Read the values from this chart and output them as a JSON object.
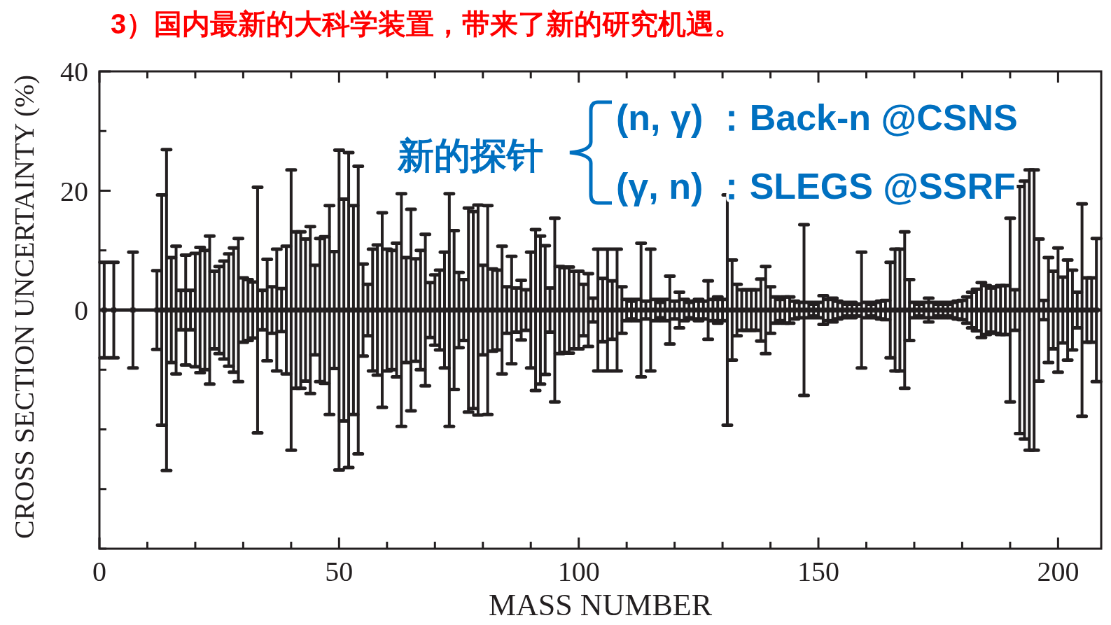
{
  "chart_data": {
    "type": "scatter",
    "title": "3）国内最新的大科学装置，带来了新的研究机遇。",
    "xlabel": "MASS NUMBER",
    "ylabel": "CROSS SECTION UNCERTAINTY (%)",
    "annotations": [
      "新的探针",
      "(n, γ) ：Back-n @CSNS",
      "(γ, n) ：SLEGS @SSRF"
    ],
    "marker": "square",
    "xlim": [
      0,
      209
    ],
    "ylim": [
      -40,
      40
    ],
    "xticks": [
      0,
      {
        "value": 10,
        "label": null
      },
      {
        "value": 20,
        "label": null
      },
      {
        "value": 30,
        "label": null
      },
      {
        "value": 40,
        "label": null
      },
      50,
      {
        "value": 60,
        "label": null
      },
      {
        "value": 70,
        "label": null
      },
      {
        "value": 80,
        "label": null
      },
      {
        "value": 90,
        "label": null
      },
      100,
      {
        "value": 110,
        "label": null
      },
      {
        "value": 120,
        "label": null
      },
      {
        "value": 130,
        "label": null
      },
      {
        "value": 140,
        "label": null
      },
      150,
      {
        "value": 160,
        "label": null
      },
      {
        "value": 170,
        "label": null
      },
      {
        "value": 180,
        "label": null
      },
      {
        "value": 190,
        "label": null
      },
      200
    ],
    "yticks": [
      {
        "value": -40,
        "label": null
      },
      {
        "value": -30,
        "label": null
      },
      {
        "value": -20,
        "label": null
      },
      {
        "value": -10,
        "label": null
      },
      0,
      {
        "value": 10,
        "label": null
      },
      20,
      {
        "value": 30,
        "label": null
      },
      40
    ],
    "ref_lines": [
      {
        "axis": "y",
        "value": 0,
        "label": null
      }
    ],
    "x": [
      1,
      3,
      7,
      12,
      13,
      14,
      15,
      16,
      17,
      18,
      19,
      20,
      21,
      22,
      23,
      24,
      25,
      26,
      27,
      28,
      29,
      30,
      31,
      32,
      33,
      34,
      35,
      36,
      37,
      38,
      39,
      40,
      41,
      42,
      43,
      44,
      45,
      46,
      47,
      48,
      49,
      50,
      51,
      52,
      53,
      54,
      55,
      56,
      57,
      58,
      59,
      60,
      61,
      62,
      63,
      64,
      65,
      66,
      67,
      68,
      69,
      70,
      71,
      72,
      73,
      74,
      75,
      76,
      77,
      78,
      79,
      80,
      81,
      82,
      83,
      84,
      85,
      86,
      87,
      88,
      89,
      90,
      91,
      92,
      93,
      94,
      95,
      96,
      97,
      98,
      99,
      100,
      101,
      102,
      103,
      104,
      105,
      106,
      107,
      108,
      109,
      110,
      111,
      112,
      113,
      114,
      115,
      116,
      117,
      118,
      119,
      120,
      121,
      122,
      123,
      124,
      125,
      126,
      127,
      128,
      129,
      130,
      131,
      132,
      133,
      134,
      135,
      136,
      137,
      138,
      139,
      140,
      141,
      142,
      143,
      144,
      145,
      146,
      147,
      148,
      149,
      150,
      151,
      152,
      153,
      154,
      155,
      156,
      157,
      158,
      159,
      160,
      161,
      162,
      163,
      164,
      165,
      166,
      167,
      168,
      169,
      170,
      171,
      172,
      173,
      174,
      175,
      176,
      177,
      178,
      179,
      180,
      181,
      182,
      183,
      184,
      185,
      186,
      187,
      188,
      189,
      190,
      191,
      192,
      193,
      194,
      195,
      196,
      197,
      198,
      199,
      200,
      201,
      202,
      203,
      204,
      205,
      206,
      207,
      208
    ],
    "series": [
      {
        "color": "#231f20",
        "values": [
          0,
          0,
          0,
          0,
          0,
          0,
          0,
          0,
          0,
          0,
          0,
          0,
          0,
          0,
          0,
          0,
          0,
          0,
          0,
          0,
          0,
          0,
          0,
          0,
          0,
          0,
          0,
          0,
          0,
          0,
          0,
          0,
          0,
          0,
          0,
          0,
          0,
          0,
          0,
          0,
          0,
          0,
          0,
          0,
          0,
          0,
          0,
          0,
          0,
          0,
          0,
          0,
          0,
          0,
          0,
          0,
          0,
          0,
          0,
          0,
          0,
          0,
          0,
          0,
          0,
          0,
          0,
          0,
          0,
          0,
          0,
          0,
          0,
          0,
          0,
          0,
          0,
          0,
          0,
          0,
          0,
          0,
          0,
          0,
          0,
          0,
          0,
          0,
          0,
          0,
          0,
          0,
          0,
          0,
          0,
          0,
          0,
          0,
          0,
          0,
          0,
          0,
          0,
          0,
          0,
          0,
          0,
          0,
          0,
          0,
          0,
          0,
          0,
          0,
          0,
          0,
          0,
          0,
          0,
          0,
          0,
          0,
          0,
          0,
          0,
          0,
          0,
          0,
          0,
          0,
          0,
          0,
          0,
          0,
          0,
          0,
          0,
          0,
          0,
          0,
          0,
          0,
          0,
          0,
          0,
          0,
          0,
          0,
          0,
          0,
          0,
          0,
          0,
          0,
          0,
          0,
          0,
          0,
          0,
          0,
          0,
          0,
          0,
          0,
          0,
          0,
          0,
          0,
          0,
          0,
          0,
          0,
          0,
          0,
          0,
          0,
          0,
          0,
          0,
          0,
          0,
          0,
          0,
          0,
          0,
          0,
          0,
          0,
          0,
          0,
          0,
          0,
          0,
          0,
          0,
          0,
          0,
          0,
          0,
          0
        ],
        "errors": [
          8,
          8,
          9.7,
          6.6,
          19.3,
          26.9,
          8.8,
          10.7,
          3.3,
          9.2,
          3.3,
          9.5,
          10.5,
          10,
          12.4,
          6.5,
          7.3,
          8.2,
          9.4,
          10.4,
          12,
          5.4,
          5.1,
          4.7,
          20.6,
          3.3,
          8.5,
          3.9,
          10.2,
          3.6,
          10.7,
          23.5,
          13.1,
          13.1,
          11.9,
          14,
          7.5,
          12,
          12.3,
          17.5,
          9.8,
          26.8,
          18.6,
          26.4,
          17.5,
          24.1,
          7.7,
          4.3,
          10.2,
          10.9,
          16.3,
          10.2,
          10,
          11.2,
          19.5,
          8.8,
          16.9,
          8.6,
          10,
          12.7,
          4.6,
          5.9,
          6.7,
          9.7,
          19.5,
          13.3,
          6.3,
          5.1,
          17.1,
          16.5,
          17.6,
          7.5,
          17.5,
          6.9,
          6.7,
          10.7,
          3.9,
          9,
          3.7,
          5,
          3.4,
          9.7,
          13.5,
          12.4,
          10.8,
          3.7,
          15.4,
          7.3,
          7.1,
          7.2,
          6.5,
          6.5,
          4.3,
          6.1,
          2,
          10.2,
          5.3,
          10.2,
          4.9,
          10.2,
          3.9,
          1.8,
          1.5,
          1.8,
          11.2,
          1.5,
          10.2,
          1.8,
          1.3,
          1.8,
          5.7,
          1.5,
          3,
          1.8,
          1.3,
          1.5,
          1.8,
          1.5,
          4.9,
          1.8,
          2.2,
          1.8,
          19.3,
          8.4,
          4.3,
          3.4,
          3.4,
          3.4,
          3.4,
          5.2,
          7.3,
          3.9,
          2.2,
          1.8,
          2.2,
          2.2,
          1.5,
          1.3,
          14.3,
          1.3,
          1,
          1.3,
          2.4,
          1.8,
          2,
          1.5,
          1.3,
          1,
          1.3,
          1,
          9.7,
          1.3,
          1,
          1.3,
          1.5,
          1.6,
          8,
          10.2,
          10.2,
          13.1,
          5.1,
          1.3,
          1,
          1.3,
          2,
          1.3,
          1,
          1.3,
          1,
          1.3,
          1.5,
          1.6,
          2.2,
          3,
          3.5,
          4.6,
          4.1,
          3.7,
          3.9,
          4.1,
          4.1,
          15.4,
          3.4,
          20.7,
          21.6,
          23.5,
          23.5,
          11.9,
          1.6,
          8.8,
          6.5,
          10.4,
          5.5,
          8.4,
          6.7,
          3,
          17.8,
          5.4,
          5.4,
          12
        ]
      }
    ]
  }
}
